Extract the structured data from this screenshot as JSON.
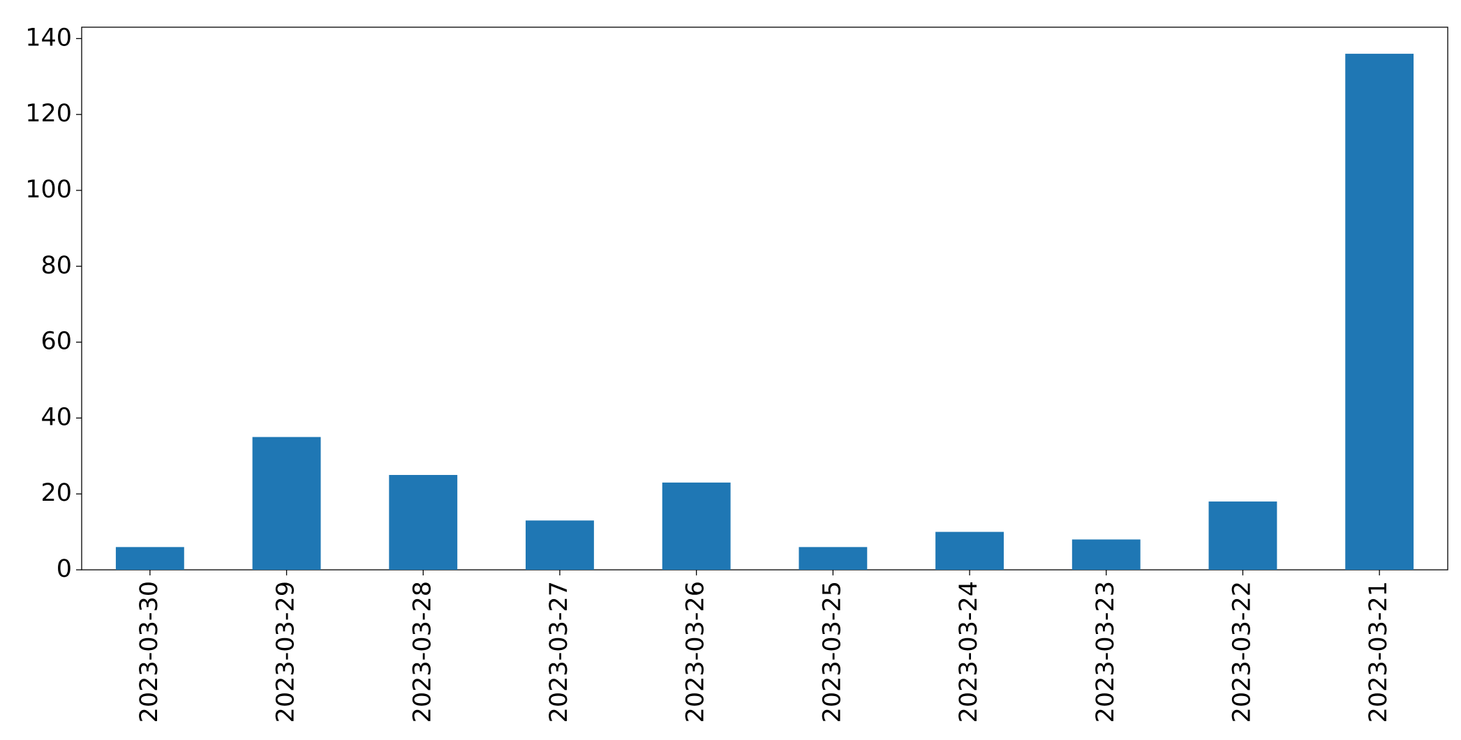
{
  "chart_data": {
    "type": "bar",
    "categories": [
      "2023-03-30",
      "2023-03-29",
      "2023-03-28",
      "2023-03-27",
      "2023-03-26",
      "2023-03-25",
      "2023-03-24",
      "2023-03-23",
      "2023-03-22",
      "2023-03-21"
    ],
    "values": [
      6,
      35,
      25,
      13,
      23,
      6,
      10,
      8,
      18,
      136
    ],
    "color": "#1f77b4",
    "ylim": [
      0,
      143
    ],
    "yticks": [
      0,
      20,
      40,
      60,
      80,
      100,
      120,
      140
    ],
    "grid": false
  }
}
